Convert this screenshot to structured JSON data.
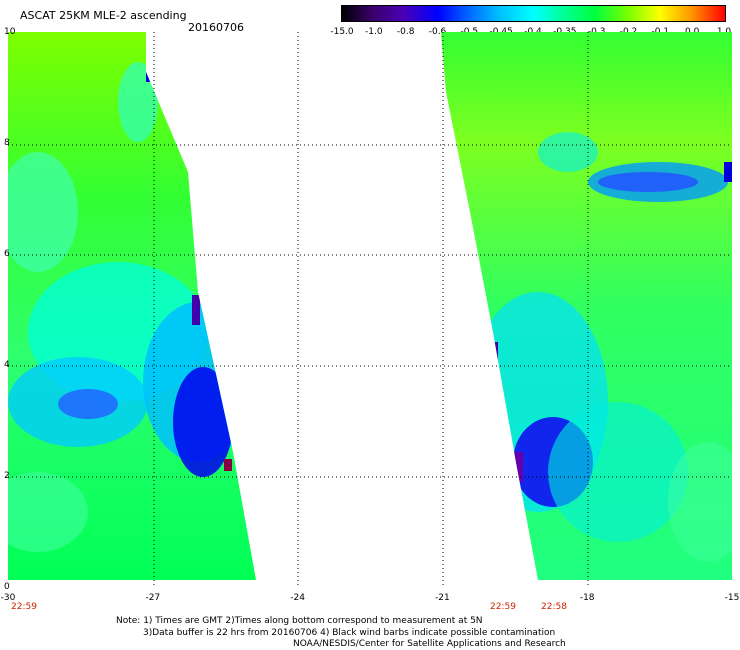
{
  "header": {
    "title": "ASCAT 25KM MLE-2 ascending",
    "date": "20160706"
  },
  "colorbar": {
    "ticks": [
      "-15.0",
      "-1.0",
      "-0.8",
      "-0.6",
      "-0.5",
      "-0.45",
      "-0.4",
      "-0.35",
      "-0.3",
      "-0.2",
      "-0.1",
      "0.0",
      "1.0"
    ]
  },
  "axes": {
    "x_labels": [
      "-30",
      "-27",
      "-24",
      "-21",
      "-18",
      "-15"
    ],
    "y_labels": [
      "0",
      "2",
      "4",
      "6",
      "8",
      "10"
    ],
    "x_range": [
      -30,
      -15
    ],
    "y_range": [
      0,
      10
    ]
  },
  "times": [
    "22:59",
    "22:59",
    "22:58"
  ],
  "notes": {
    "line1": "Note: 1) Times are GMT 2)Times along bottom correspond to measurement at 5N",
    "line2": "3)Data buffer is 22 hrs from 20160706 4) Black wind barbs indicate possible contamination",
    "line3": "NOAA/NESDIS/Center for Satellite Applications and Research"
  }
}
